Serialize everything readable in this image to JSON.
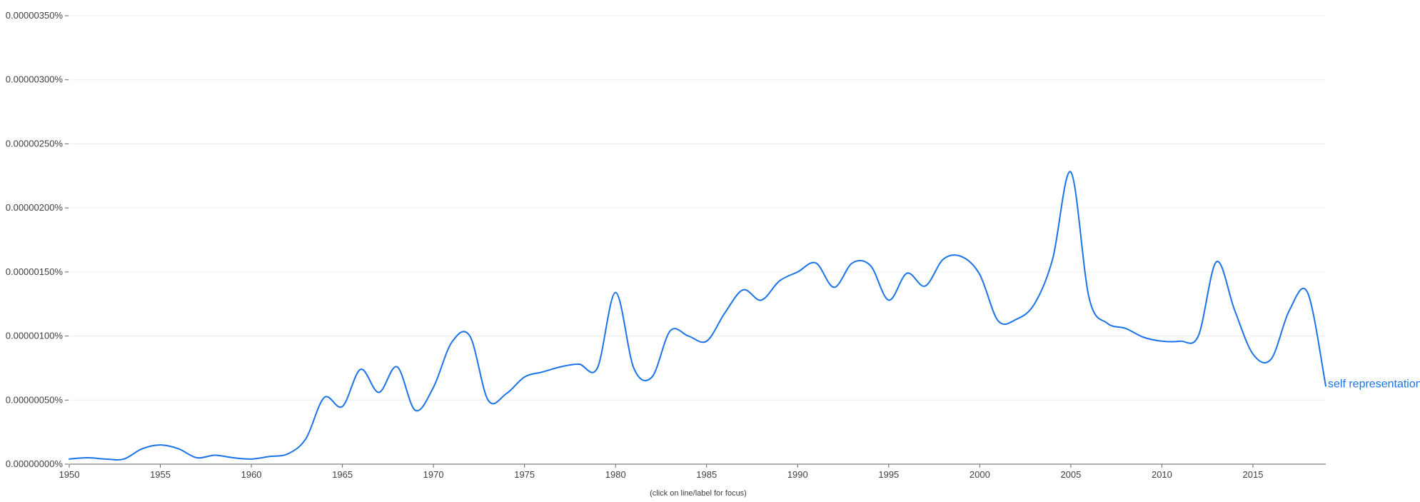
{
  "chart_data": {
    "type": "line",
    "title": "",
    "xlabel": "",
    "ylabel": "",
    "xlim": [
      1950,
      2019
    ],
    "ylim": [
      0,
      3.5e-06
    ],
    "x_ticks": [
      1950,
      1955,
      1960,
      1965,
      1970,
      1975,
      1980,
      1985,
      1990,
      1995,
      2000,
      2005,
      2010,
      2015
    ],
    "y_ticks": [
      0,
      5e-07,
      1e-06,
      1.5e-06,
      2e-06,
      2.5e-06,
      3e-06,
      3.5e-06
    ],
    "y_tick_labels": [
      "0.00000000%",
      "0.00000050%",
      "0.00000100%",
      "0.00000150%",
      "0.00000200%",
      "0.00000250%",
      "0.00000300%",
      "0.00000350%"
    ],
    "grid": true,
    "series": [
      {
        "name": "self representation",
        "color": "#1a73e8",
        "x": [
          1950,
          1951,
          1952,
          1953,
          1954,
          1955,
          1956,
          1957,
          1958,
          1959,
          1960,
          1961,
          1962,
          1963,
          1964,
          1965,
          1966,
          1967,
          1968,
          1969,
          1970,
          1971,
          1972,
          1973,
          1974,
          1975,
          1976,
          1977,
          1978,
          1979,
          1980,
          1981,
          1982,
          1983,
          1984,
          1985,
          1986,
          1987,
          1988,
          1989,
          1990,
          1991,
          1992,
          1993,
          1994,
          1995,
          1996,
          1997,
          1998,
          1999,
          2000,
          2001,
          2002,
          2003,
          2004,
          2005,
          2006,
          2007,
          2008,
          2009,
          2010,
          2011,
          2012,
          2013,
          2014,
          2015,
          2016,
          2017,
          2018,
          2019
        ],
        "values": [
          4e-08,
          5e-08,
          4e-08,
          4e-08,
          1.2e-07,
          1.5e-07,
          1.2e-07,
          5e-08,
          7e-08,
          5e-08,
          4e-08,
          6e-08,
          8e-08,
          2e-07,
          5.2e-07,
          4.5e-07,
          7.4e-07,
          5.6e-07,
          7.6e-07,
          4.2e-07,
          6e-07,
          9.5e-07,
          1e-06,
          5e-07,
          5.5e-07,
          6.8e-07,
          7.2e-07,
          7.6e-07,
          7.8e-07,
          7.5e-07,
          1.34e-06,
          7.5e-07,
          6.8e-07,
          1.04e-06,
          1e-06,
          9.6e-07,
          1.18e-06,
          1.36e-06,
          1.28e-06,
          1.43e-06,
          1.5e-06,
          1.57e-06,
          1.38e-06,
          1.57e-06,
          1.55e-06,
          1.28e-06,
          1.49e-06,
          1.39e-06,
          1.6e-06,
          1.62e-06,
          1.48e-06,
          1.12e-06,
          1.13e-06,
          1.25e-06,
          1.6e-06,
          2.28e-06,
          1.3e-06,
          1.1e-06,
          1.06e-06,
          9.9e-07,
          9.6e-07,
          9.6e-07,
          1e-06,
          1.58e-06,
          1.2e-06,
          8.6e-07,
          8.2e-07,
          1.2e-06,
          1.34e-06,
          6.1e-07
        ]
      }
    ]
  },
  "hint_text": "(click on line/label for focus)"
}
